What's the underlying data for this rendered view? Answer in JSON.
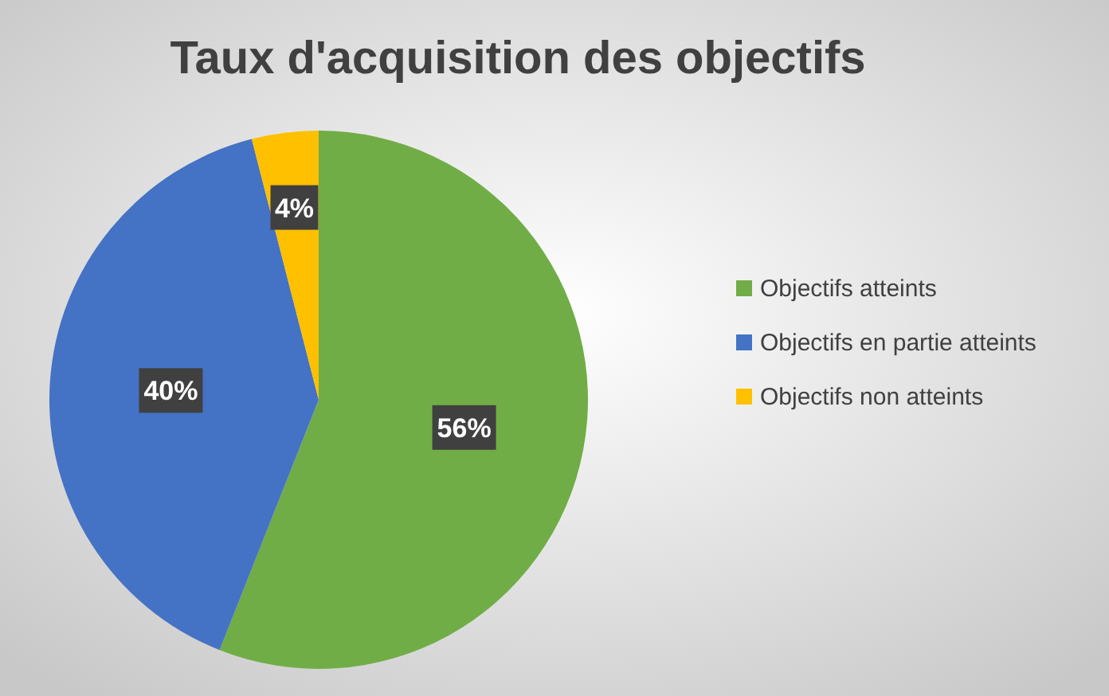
{
  "chart_data": {
    "type": "pie",
    "title": "Taux d'acquisition des objectifs",
    "categories": [
      "Objectifs atteints",
      "Objectifs en partie atteints",
      "Objectifs non atteints"
    ],
    "values": [
      56,
      40,
      4
    ],
    "colors": [
      "#70ad47",
      "#4472c4",
      "#ffc000"
    ],
    "value_labels": [
      "56%",
      "40%",
      "4%"
    ],
    "legend": "right"
  }
}
